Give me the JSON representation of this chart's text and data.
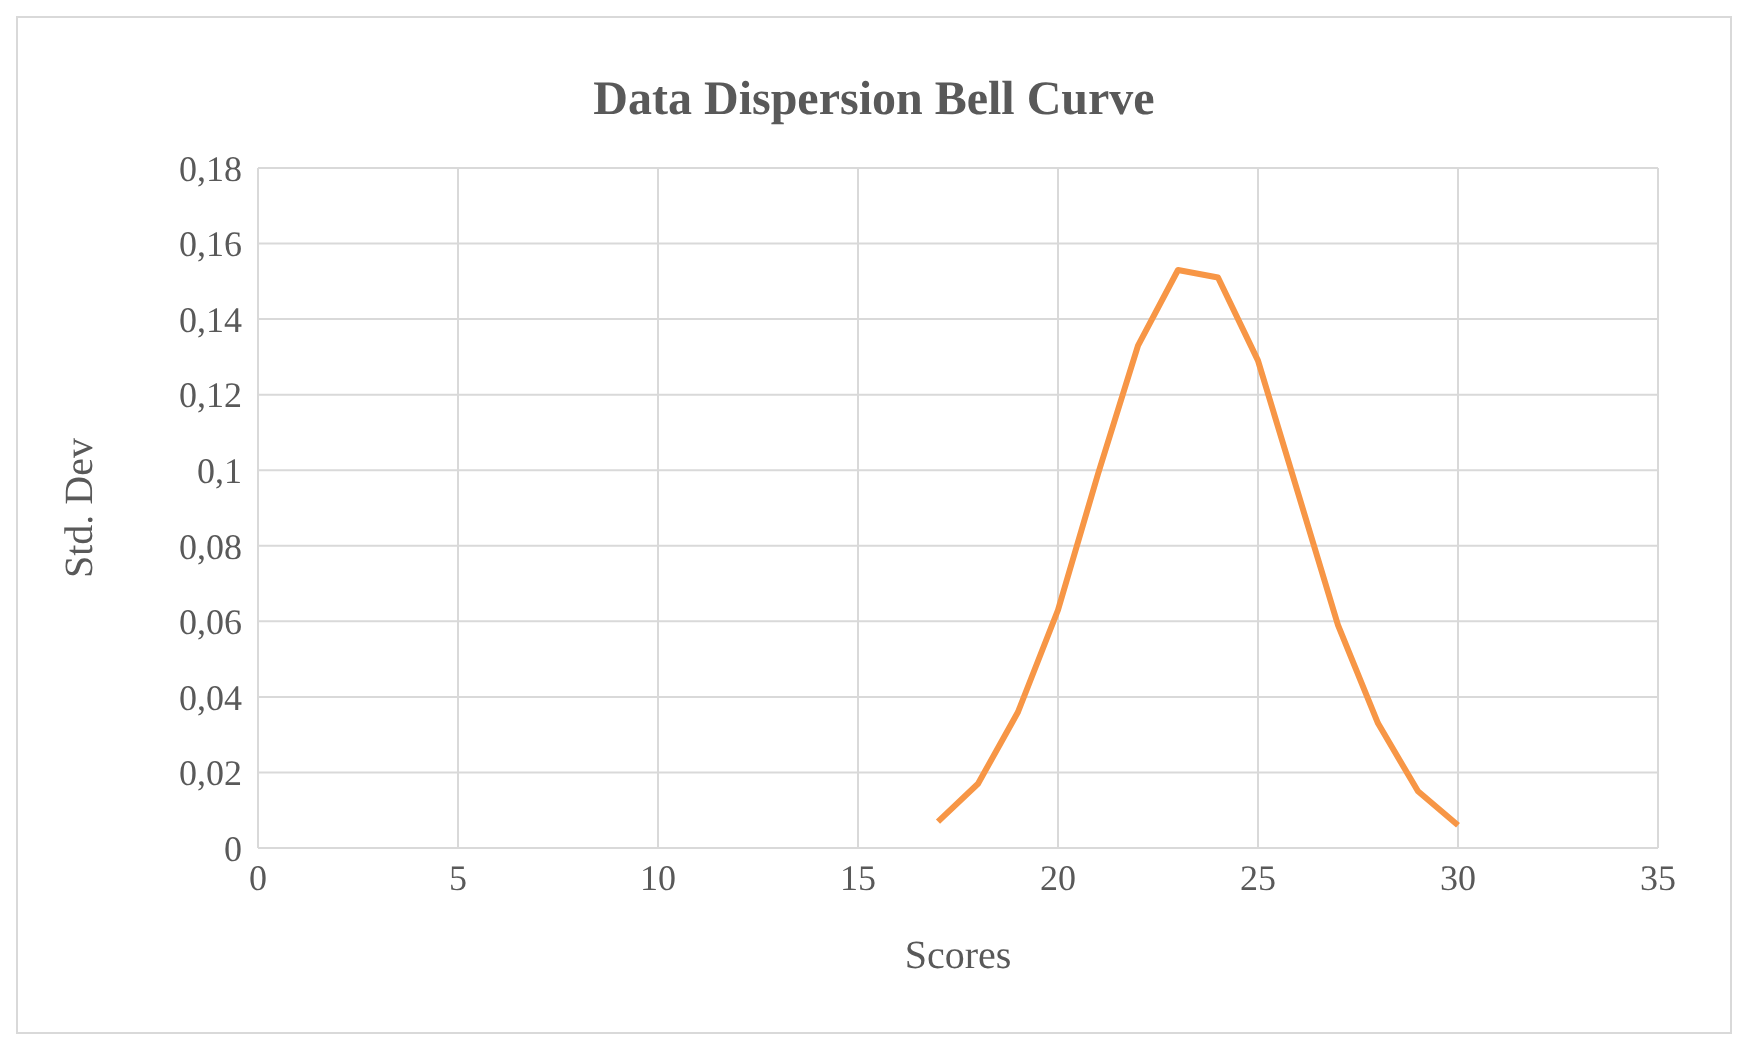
{
  "chart_data": {
    "type": "line",
    "title": "Data Dispersion Bell Curve",
    "xlabel": "Scores",
    "ylabel": "Std. Dev",
    "x": [
      17,
      18,
      19,
      20,
      21,
      22,
      23,
      24,
      25,
      26,
      27,
      28,
      29,
      30
    ],
    "series": [
      {
        "color": "#f79646",
        "values": [
          0.007,
          0.017,
          0.036,
          0.063,
          0.099,
          0.133,
          0.153,
          0.151,
          0.129,
          0.094,
          0.059,
          0.033,
          0.015,
          0.006
        ]
      }
    ],
    "xlim": [
      0,
      35
    ],
    "xticks": [
      0,
      5,
      10,
      15,
      20,
      25,
      30,
      35
    ],
    "ylim": [
      0,
      0.18
    ],
    "yticks": [
      0,
      {
        "value": 0.02,
        "label": "0,02"
      },
      {
        "value": 0.04,
        "label": "0,04"
      },
      {
        "value": 0.06,
        "label": "0,06"
      },
      {
        "value": 0.08,
        "label": "0,08"
      },
      {
        "value": 0.1,
        "label": "0,1"
      },
      {
        "value": 0.12,
        "label": "0,12"
      },
      {
        "value": 0.14,
        "label": "0,14"
      },
      {
        "value": 0.16,
        "label": "0,16"
      },
      {
        "value": 0.18,
        "label": "0,18"
      }
    ],
    "grid": true,
    "legend": false,
    "marker": "none",
    "line_style": "solid"
  }
}
